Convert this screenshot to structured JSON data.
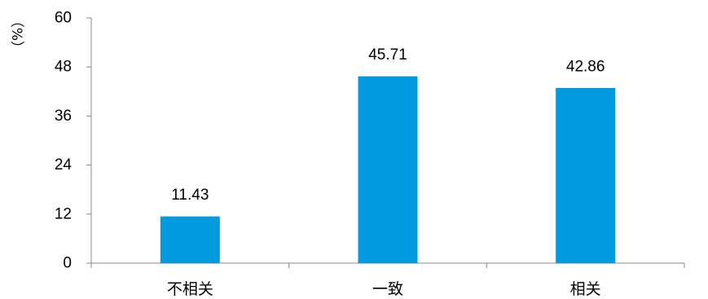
{
  "chart_data": {
    "type": "bar",
    "categories": [
      "不相关",
      "一致",
      "相关"
    ],
    "values": [
      11.43,
      45.71,
      42.86
    ],
    "value_labels": [
      "11.43",
      "45.71",
      "42.86"
    ],
    "title": "",
    "xlabel": "",
    "ylabel": "（%）",
    "ylim": [
      0,
      60
    ],
    "yticks": [
      0,
      12,
      24,
      36,
      48,
      60
    ],
    "grid": false,
    "legend": "none",
    "bar_color": "#009ADE"
  }
}
